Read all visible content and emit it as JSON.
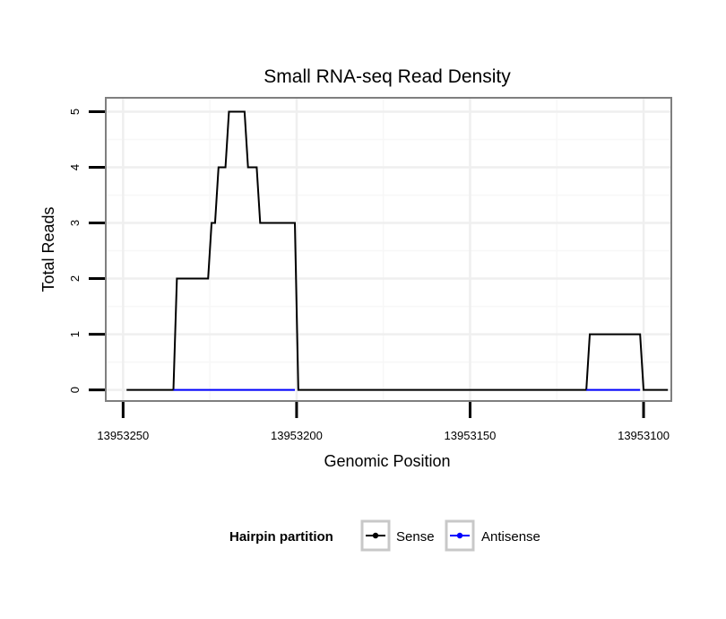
{
  "chart_data": {
    "type": "line",
    "title": "Small RNA-seq Read Density",
    "xlabel": "Genomic Position",
    "ylabel": "Total Reads",
    "xlim": [
      13953255,
      13953092
    ],
    "ylim": [
      -0.2,
      5.25
    ],
    "x_reversed": true,
    "x_ticks": [
      13953250,
      13953200,
      13953150,
      13953100
    ],
    "x_tick_labels": [
      "13953250",
      "13953200",
      "13953150",
      "13953100"
    ],
    "y_ticks": [
      0,
      1,
      2,
      3,
      4,
      5
    ],
    "y_tick_labels": [
      "0",
      "1",
      "2",
      "3",
      "4",
      "5"
    ],
    "grid": true,
    "legend_position": "bottom",
    "legend": {
      "title": "Hairpin partition",
      "entries": [
        {
          "name": "Sense",
          "color": "#000000"
        },
        {
          "name": "Antisense",
          "color": "#0000ff"
        }
      ]
    },
    "series": [
      {
        "name": "Sense",
        "color": "#000000",
        "x": [
          13953249,
          13953235.5,
          13953234.5,
          13953225.5,
          13953224.5,
          13953223.5,
          13953222.5,
          13953220.5,
          13953219.5,
          13953215,
          13953214,
          13953211.5,
          13953210.5,
          13953208.5,
          13953207.5,
          13953200.5,
          13953199.5,
          13953116.5,
          13953115.5,
          13953101,
          13953100,
          13953093
        ],
        "y": [
          0,
          0,
          2,
          2,
          3,
          3,
          4,
          4,
          5,
          5,
          4,
          4,
          3,
          3,
          3,
          3,
          0,
          0,
          1,
          1,
          0,
          0
        ]
      },
      {
        "name": "Antisense",
        "color": "#0000ff",
        "segments": [
          {
            "x": [
              13953235.5,
              13953200.5
            ],
            "y": [
              0,
              0
            ]
          },
          {
            "x": [
              13953116.5,
              13953101
            ],
            "y": [
              0,
              0
            ]
          }
        ]
      }
    ]
  }
}
